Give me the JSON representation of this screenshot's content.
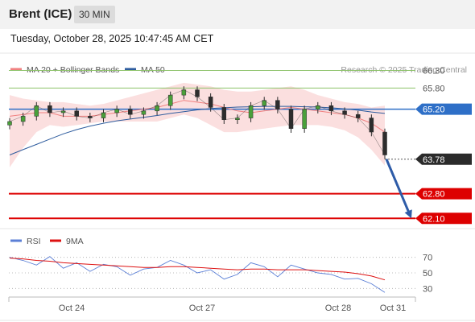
{
  "header": {
    "instrument": "Brent (ICE)",
    "timeframe": "30 MIN"
  },
  "timestamp": "Tuesday, October 28, 2025 10:47:45 AM CET",
  "legend": {
    "ma20": {
      "label": "MA 20 + Bollinger Bands",
      "color": "#f08080"
    },
    "ma50": {
      "label": "MA 50",
      "color": "#2e5c9e"
    },
    "credit": "Research © 2025 Trading Central"
  },
  "rsi_legend": {
    "rsi": {
      "label": "RSI",
      "color": "#5b7fd6"
    },
    "ma9": {
      "label": "9MA",
      "color": "#dd1111"
    }
  },
  "chart_data": [
    {
      "type": "line",
      "panel": "price",
      "ylim": [
        61.9,
        66.7
      ],
      "price_levels": [
        {
          "label": "66.30",
          "value": 66.3,
          "kind": "resistance",
          "color": "#8dc26a"
        },
        {
          "label": "65.80",
          "value": 65.8,
          "kind": "resistance",
          "color": "#8dc26a"
        },
        {
          "label": "65.20",
          "value": 65.2,
          "kind": "pivot",
          "color": "#2e6fc7"
        },
        {
          "label": "63.78",
          "value": 63.78,
          "kind": "last price",
          "color": "#2b2b2b"
        },
        {
          "label": "62.80",
          "value": 62.8,
          "kind": "support",
          "color": "#dd0000"
        },
        {
          "label": "62.10",
          "value": 62.1,
          "kind": "support",
          "color": "#dd0000"
        }
      ],
      "x_ticks": [
        "Oct 24",
        "Oct 27",
        "Oct 28",
        "Oct 31"
      ],
      "series": [
        {
          "name": "MA 50",
          "values": [
            63.9,
            64.05,
            64.2,
            64.35,
            64.5,
            64.62,
            64.72,
            64.8,
            64.87,
            64.92,
            64.97,
            65.02,
            65.08,
            65.13,
            65.18,
            65.22,
            65.24,
            65.26,
            65.27,
            65.28,
            65.28,
            65.28,
            65.27,
            65.26,
            65.24,
            65.21,
            65.17,
            65.12,
            65.08
          ]
        },
        {
          "name": "MA 20",
          "values": [
            65.0,
            65.05,
            65.1,
            65.1,
            65.0,
            65.0,
            65.0,
            65.05,
            65.1,
            65.15,
            65.2,
            65.25,
            65.35,
            65.45,
            65.4,
            65.35,
            65.25,
            65.15,
            65.1,
            65.15,
            65.2,
            65.25,
            65.2,
            65.15,
            65.1,
            65.05,
            64.95,
            64.8,
            64.55
          ]
        },
        {
          "name": "Close",
          "values": [
            64.85,
            65.0,
            65.3,
            65.1,
            65.15,
            65.0,
            64.95,
            65.1,
            65.2,
            65.05,
            65.15,
            65.3,
            65.6,
            65.75,
            65.55,
            65.25,
            64.9,
            64.95,
            65.3,
            65.45,
            65.2,
            64.65,
            65.2,
            65.3,
            65.15,
            65.05,
            64.95,
            64.55,
            63.9
          ]
        }
      ],
      "bollinger": {
        "upper": [
          65.6,
          65.5,
          65.45,
          65.4,
          65.4,
          65.35,
          65.3,
          65.35,
          65.45,
          65.55,
          65.65,
          65.75,
          65.85,
          65.95,
          65.9,
          65.85,
          65.75,
          65.7,
          65.7,
          65.75,
          65.8,
          65.85,
          65.75,
          65.6,
          65.5,
          65.4,
          65.35,
          65.25,
          65.3
        ],
        "lower": [
          63.55,
          64.1,
          64.55,
          64.75,
          64.7,
          64.75,
          64.8,
          64.85,
          64.85,
          64.85,
          64.85,
          64.85,
          64.95,
          65.05,
          64.95,
          64.75,
          64.55,
          64.55,
          64.6,
          64.65,
          64.7,
          64.75,
          64.75,
          64.75,
          64.7,
          64.6,
          64.4,
          64.05,
          63.6
        ]
      },
      "projection": {
        "from": 63.78,
        "to": 62.1
      }
    },
    {
      "type": "line",
      "panel": "rsi",
      "ylim": [
        20,
        80
      ],
      "y_ticks": [
        70,
        50,
        30
      ],
      "series": [
        {
          "name": "RSI",
          "values": [
            70,
            66,
            60,
            71,
            56,
            63,
            52,
            61,
            58,
            47,
            55,
            57,
            66,
            60,
            50,
            54,
            42,
            48,
            63,
            58,
            45,
            60,
            55,
            50,
            48,
            42,
            43,
            36,
            25
          ]
        },
        {
          "name": "9MA",
          "values": [
            69,
            68,
            66,
            65,
            63,
            62,
            61,
            60,
            59,
            58,
            57,
            57,
            58,
            58,
            57,
            56,
            55,
            54,
            55,
            55,
            54,
            54,
            54,
            53,
            52,
            51,
            49,
            46,
            41
          ]
        }
      ]
    }
  ]
}
